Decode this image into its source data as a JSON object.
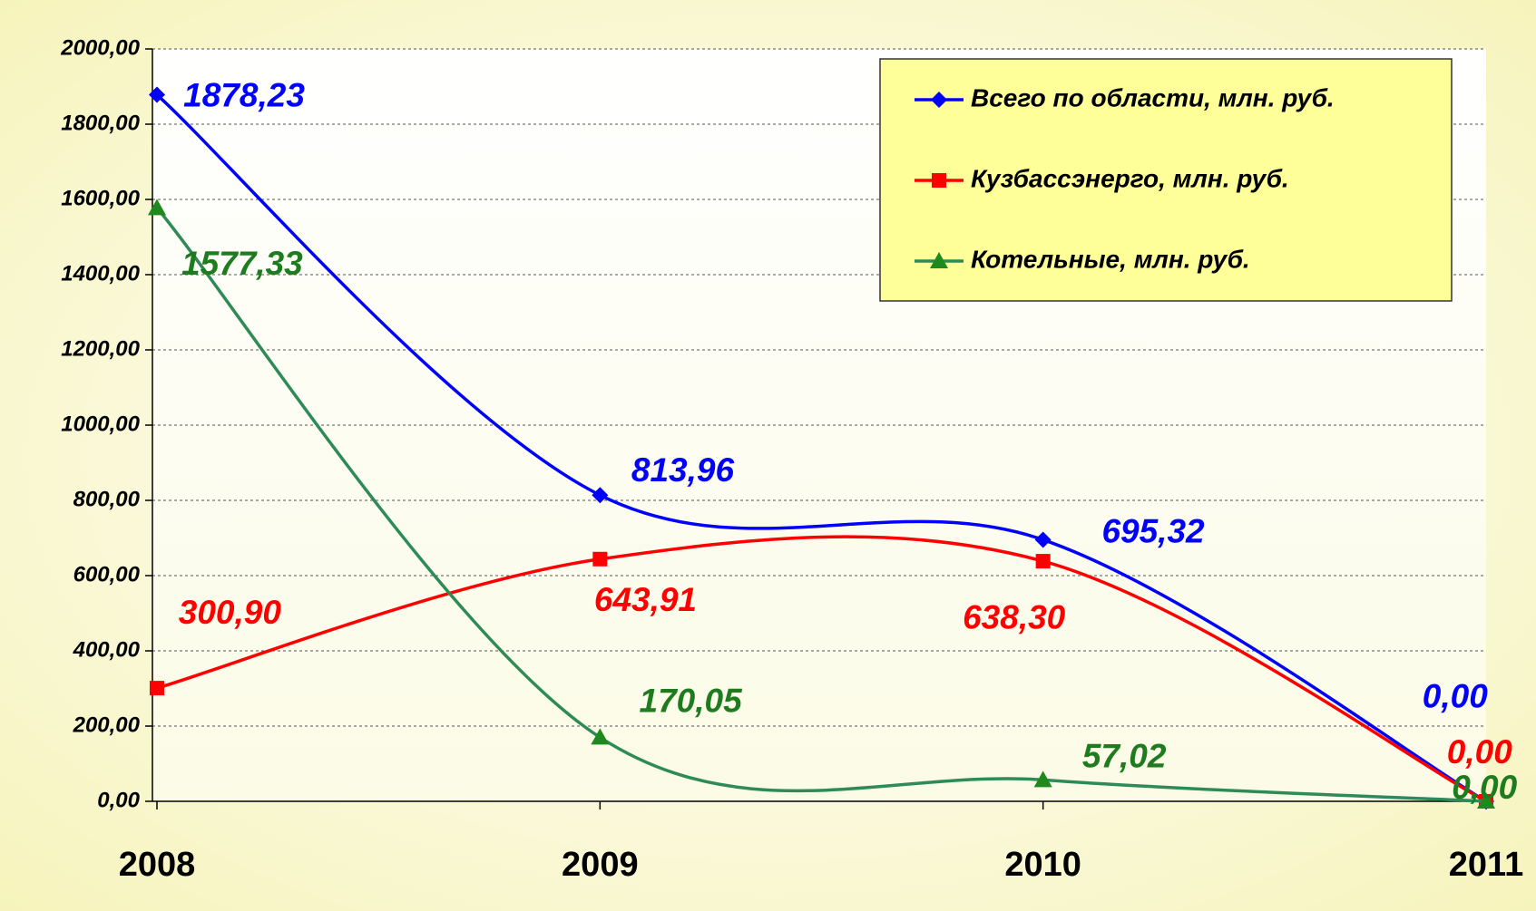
{
  "chart_data": {
    "type": "line",
    "categories": [
      "2008",
      "2009",
      "2010",
      "2011"
    ],
    "series": [
      {
        "name": "Всего по области, млн. руб.",
        "color": "#0000ff",
        "marker": "diamond",
        "values": [
          1878.23,
          813.96,
          695.32,
          0
        ],
        "value_labels": [
          "1878,23",
          "813,96",
          "695,32",
          "0,00"
        ]
      },
      {
        "name": "Кузбассэнерго, млн. руб.",
        "color": "#ff0000",
        "marker": "square",
        "values": [
          300.9,
          643.91,
          638.3,
          0
        ],
        "value_labels": [
          "300,90",
          "643,91",
          "638,30",
          "0,00"
        ]
      },
      {
        "name": "Котельные, млн. руб.",
        "color": "#2e8b57",
        "marker": "triangle",
        "values": [
          1577.33,
          170.05,
          57.02,
          0
        ],
        "value_labels": [
          "1577,33",
          "170,05",
          "57,02",
          "0,00"
        ]
      }
    ],
    "ylim": [
      0,
      2000
    ],
    "yticks": [
      {
        "value": 0,
        "label": "0,00"
      },
      {
        "value": 200,
        "label": "200,00"
      },
      {
        "value": 400,
        "label": "400,00"
      },
      {
        "value": 600,
        "label": "600,00"
      },
      {
        "value": 800,
        "label": "800,00"
      },
      {
        "value": 1000,
        "label": "1000,00"
      },
      {
        "value": 1200,
        "label": "1200,00"
      },
      {
        "value": 1400,
        "label": "1400,00"
      },
      {
        "value": 1600,
        "label": "1600,00"
      },
      {
        "value": 1800,
        "label": "1800,00"
      },
      {
        "value": 2000,
        "label": "2000,00"
      }
    ],
    "grid": true,
    "smooth": true,
    "legend": "upper right"
  }
}
